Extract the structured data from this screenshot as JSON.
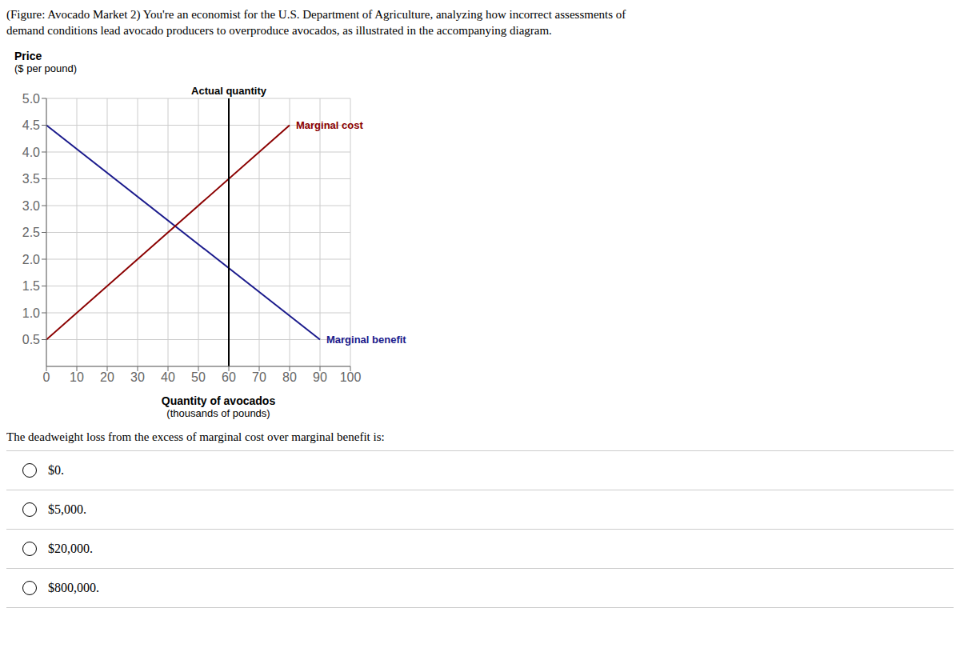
{
  "chart_data": {
    "type": "line",
    "header_text": [
      "(Figure: Avocado Market 2) You're an economist for the U.S. Department of Agriculture, analyzing how incorrect assessments of",
      "demand conditions lead avocado producers to overproduce avocados, as illustrated in the accompanying diagram."
    ],
    "ylabel": [
      "Price",
      "($ per pound)"
    ],
    "xlabel": [
      "Quantity of avocados",
      "(thousands of pounds)"
    ],
    "series": [
      {
        "name": "Marginal benefit",
        "color": "#1a1a8c",
        "x": [
          0,
          90
        ],
        "values": [
          4.5,
          0.5
        ]
      },
      {
        "name": "Marginal cost",
        "color": "#8b0000",
        "x": [
          0,
          80
        ],
        "values": [
          0.5,
          4.5
        ]
      }
    ],
    "vlines": [
      {
        "x": 60,
        "label": "Actual quantity",
        "color": "#000000"
      }
    ],
    "xlim": [
      0,
      100
    ],
    "ylim": [
      0,
      5.0
    ],
    "xticks": [
      0,
      10,
      20,
      30,
      40,
      50,
      60,
      70,
      80,
      90,
      100
    ],
    "yticks": [
      0.5,
      {
        "value": 1.0,
        "label": "1.0"
      },
      1.5,
      {
        "value": 2.0,
        "label": "2.0"
      },
      2.5,
      {
        "value": 3.0,
        "label": "3.0"
      },
      3.5,
      {
        "value": 4.0,
        "label": "4.0"
      },
      4.5,
      {
        "value": 5.0,
        "label": "5.0"
      }
    ],
    "grid": true,
    "question": "The deadweight loss from the excess of marginal cost over marginal benefit is:",
    "options": [
      "$0.",
      "$5,000.",
      "$20,000.",
      "$800,000."
    ]
  }
}
